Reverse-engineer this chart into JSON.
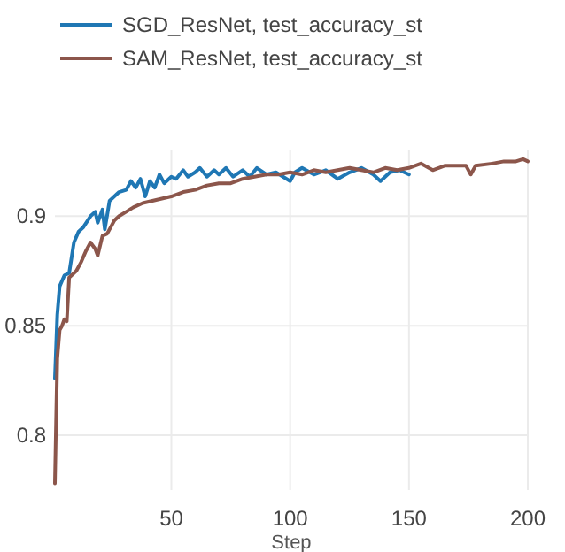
{
  "chart_data": {
    "type": "line",
    "xlabel": "Step",
    "xlim": [
      1,
      200
    ],
    "xticks": [
      50,
      100,
      150,
      200
    ],
    "ylim": [
      0.775,
      0.93
    ],
    "yticks": [
      0.8,
      0.85,
      0.9
    ],
    "grid": true,
    "legend": "top left",
    "line_style": "solid",
    "marker": "none",
    "series": [
      {
        "name": "SGD_ResNet, test_accuracy_st",
        "color": "#1f77b4",
        "x": [
          1,
          2,
          3,
          5,
          7,
          9,
          11,
          13,
          16,
          18,
          19,
          21,
          22,
          24,
          26,
          28,
          31,
          33,
          35,
          37,
          39,
          41,
          43,
          45,
          47,
          50,
          52,
          55,
          57,
          60,
          62,
          65,
          68,
          70,
          73,
          76,
          80,
          83,
          86,
          90,
          94,
          97,
          100,
          102,
          105,
          110,
          115,
          120,
          125,
          130,
          135,
          138,
          142,
          146,
          150
        ],
        "values": [
          0.826,
          0.855,
          0.868,
          0.873,
          0.874,
          0.888,
          0.893,
          0.895,
          0.9,
          0.902,
          0.897,
          0.903,
          0.894,
          0.907,
          0.909,
          0.911,
          0.912,
          0.916,
          0.913,
          0.917,
          0.909,
          0.916,
          0.913,
          0.919,
          0.915,
          0.918,
          0.917,
          0.921,
          0.918,
          0.92,
          0.922,
          0.918,
          0.921,
          0.919,
          0.922,
          0.918,
          0.921,
          0.918,
          0.922,
          0.919,
          0.92,
          0.918,
          0.916,
          0.92,
          0.922,
          0.919,
          0.921,
          0.917,
          0.92,
          0.922,
          0.919,
          0.916,
          0.92,
          0.921,
          0.919
        ]
      },
      {
        "name": "SAM_ResNet, test_accuracy_st",
        "color": "#8c564b",
        "x": [
          1,
          2,
          3,
          4,
          5,
          6,
          7,
          10,
          12,
          14,
          16,
          18,
          19,
          21,
          23,
          26,
          28,
          31,
          34,
          38,
          42,
          46,
          50,
          55,
          60,
          65,
          70,
          75,
          80,
          85,
          90,
          95,
          100,
          105,
          110,
          115,
          120,
          125,
          130,
          135,
          140,
          145,
          150,
          155,
          160,
          165,
          170,
          174,
          176,
          178,
          185,
          190,
          195,
          198,
          200
        ],
        "values": [
          0.778,
          0.835,
          0.848,
          0.85,
          0.853,
          0.852,
          0.872,
          0.875,
          0.879,
          0.884,
          0.888,
          0.885,
          0.882,
          0.891,
          0.892,
          0.898,
          0.9,
          0.902,
          0.904,
          0.906,
          0.907,
          0.908,
          0.909,
          0.911,
          0.912,
          0.914,
          0.915,
          0.915,
          0.917,
          0.918,
          0.919,
          0.919,
          0.92,
          0.919,
          0.921,
          0.92,
          0.921,
          0.922,
          0.921,
          0.92,
          0.922,
          0.921,
          0.922,
          0.924,
          0.921,
          0.923,
          0.923,
          0.923,
          0.919,
          0.923,
          0.924,
          0.925,
          0.925,
          0.926,
          0.925
        ]
      }
    ]
  }
}
